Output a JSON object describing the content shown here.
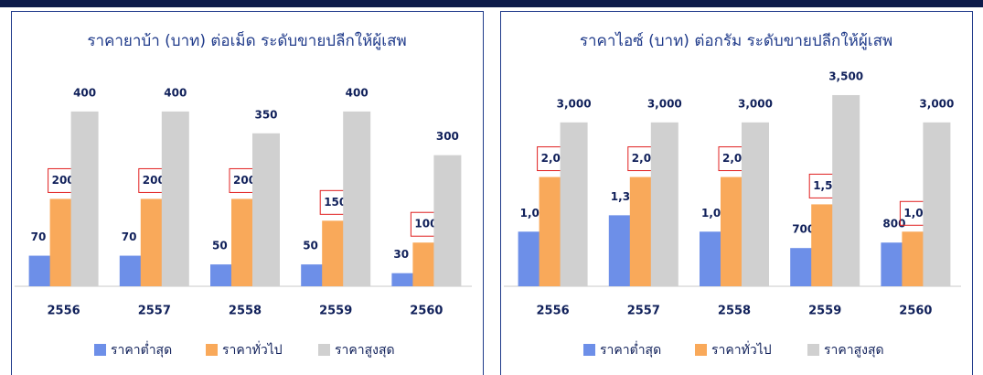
{
  "chart_data": [
    {
      "type": "bar",
      "title": "ราคายาบ้า (บาท) ต่อเม็ด ระดับขายปลีกให้ผู้เสพ",
      "categories": [
        "2556",
        "2557",
        "2558",
        "2559",
        "2560"
      ],
      "ylim": [
        0,
        450
      ],
      "series": [
        {
          "name": "ราคาต่ำสุด",
          "color": "#6d8fe8",
          "values": [
            70,
            70,
            50,
            50,
            30
          ]
        },
        {
          "name": "ราคาทั่วไป",
          "color": "#f9a95a",
          "values": [
            200,
            200,
            200,
            150,
            100
          ],
          "label_box_color": "#e02020"
        },
        {
          "name": "ราคาสูงสุด",
          "color": "#d0d0d0",
          "values": [
            400,
            400,
            350,
            400,
            300
          ]
        }
      ]
    },
    {
      "type": "bar",
      "title": "ราคาไอซ์ (บาท) ต่อกรัม ระดับขายปลีกให้ผู้เสพ",
      "categories": [
        "2556",
        "2557",
        "2558",
        "2559",
        "2560"
      ],
      "ylim": [
        0,
        3600
      ],
      "series": [
        {
          "name": "ราคาต่ำสุด",
          "color": "#6d8fe8",
          "values": [
            1000,
            1300,
            1000,
            700,
            800
          ],
          "value_labels": [
            "1,000",
            "1,300",
            "1,000",
            "700",
            "800"
          ]
        },
        {
          "name": "ราคาทั่วไป",
          "color": "#f9a95a",
          "values": [
            2000,
            2000,
            2000,
            1500,
            1000
          ],
          "value_labels": [
            "2,000",
            "2,000",
            "2,000",
            "1,500",
            "1,000"
          ],
          "label_box_color": "#e02020"
        },
        {
          "name": "ราคาสูงสุด",
          "color": "#d0d0d0",
          "values": [
            3000,
            3000,
            3000,
            3500,
            3000
          ],
          "value_labels": [
            "3,000",
            "3,000",
            "3,000",
            "3,500",
            "3,000"
          ]
        }
      ]
    }
  ]
}
